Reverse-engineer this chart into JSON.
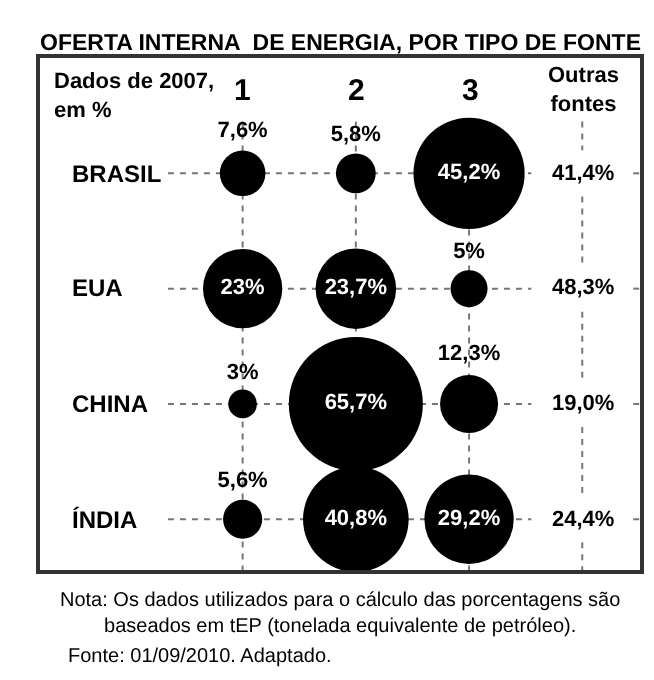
{
  "chart_data": {
    "type": "other",
    "title": "OFERTA INTERNA  DE ENERGIA, POR TIPO DE FONTE",
    "subtitle": "Dados de 2007,\nem %",
    "categories": [
      "1",
      "2",
      "3",
      "Outras\nfontes"
    ],
    "y_categories": [
      "BRASIL",
      "EUA",
      "CHINA",
      "ÍNDIA"
    ],
    "series": [
      {
        "values": [
          7.6,
          5.8,
          45.2,
          41.4
        ],
        "value_labels": [
          "7,6%",
          "5,8%",
          "45,2%",
          "41,4%"
        ],
        "color": "#000000"
      },
      {
        "values": [
          23,
          23.7,
          5,
          48.3
        ],
        "value_labels": [
          "23%",
          "23,7%",
          "5%",
          "48,3%"
        ],
        "color": "#000000"
      },
      {
        "values": [
          3,
          65.7,
          12.3,
          19.0
        ],
        "value_labels": [
          "3%",
          "65,7%",
          "12,3%",
          "19,0%"
        ],
        "color": "#000000"
      },
      {
        "values": [
          5.6,
          40.8,
          29.2,
          24.4
        ],
        "value_labels": [
          "5,6%",
          "40,8%",
          "29,2%",
          "24,4%"
        ],
        "color": "#000000"
      }
    ],
    "annotations": [
      "Nota: Os dados utilizados para o cálculo das porcentagens são\nbaseados em tEP (tonelada equivalente de petróleo).",
      "Fonte: 01/09/2010. Adaptado."
    ]
  }
}
